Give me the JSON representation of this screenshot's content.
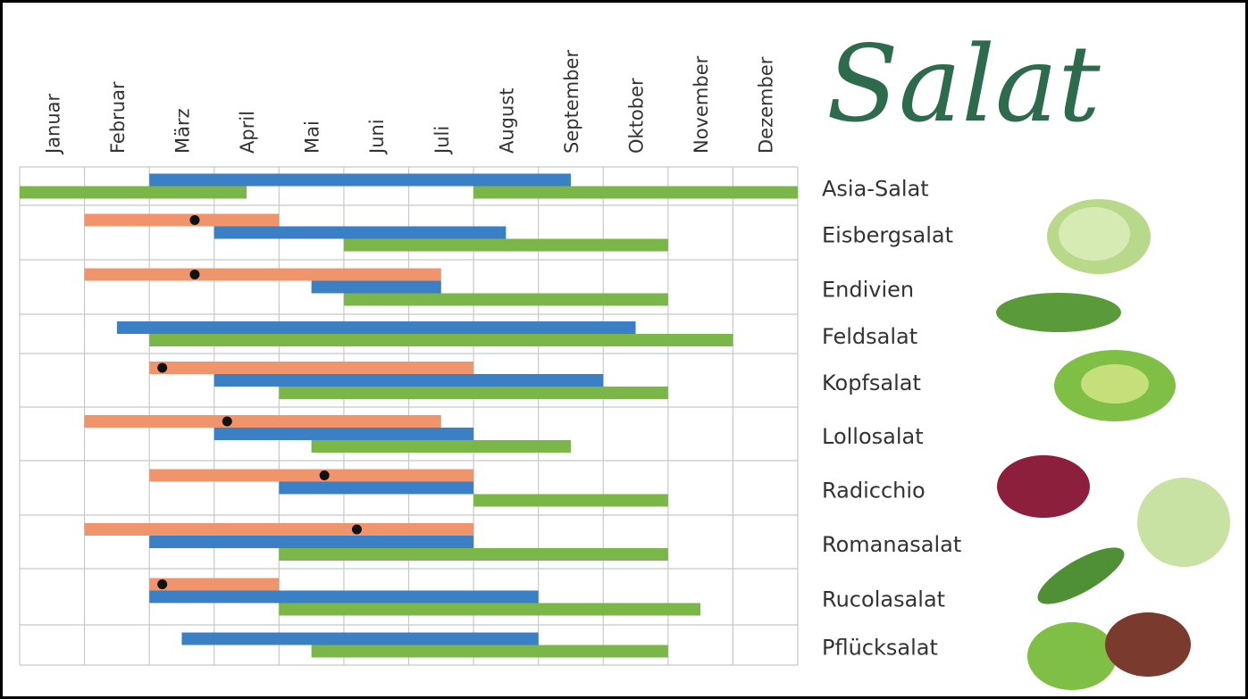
{
  "chart_data": {
    "type": "gantt",
    "title": "Salat",
    "categories": [
      "Januar",
      "Februar",
      "März",
      "April",
      "Mai",
      "Juni",
      "Juli",
      "August",
      "September",
      "Oktober",
      "November",
      "Dezember"
    ],
    "xlim": [
      0,
      12
    ],
    "xticks": [
      0,
      1,
      2,
      3,
      4,
      5,
      6,
      7,
      8,
      9,
      10,
      11,
      12
    ],
    "grid": true,
    "dot_color": "#111111",
    "rows": [
      {
        "label": "Asia-Salat",
        "bars": [
          {
            "color": "#3b7fc4",
            "start": 2,
            "end": 8.5
          },
          {
            "color": "#7ab648",
            "start": 0,
            "end": 3.5
          },
          {
            "color": "#7ab648",
            "start": 7,
            "end": 12
          }
        ]
      },
      {
        "label": "Eisbergsalat",
        "dot": 2.7,
        "bars": [
          {
            "color": "#f0956b",
            "start": 1,
            "end": 4
          },
          {
            "color": "#3b7fc4",
            "start": 3,
            "end": 7.5
          },
          {
            "color": "#7ab648",
            "start": 5,
            "end": 10
          }
        ]
      },
      {
        "label": "Endivien",
        "dot": 2.7,
        "bars": [
          {
            "color": "#f0956b",
            "start": 1,
            "end": 6.5
          },
          {
            "color": "#3b7fc4",
            "start": 4.5,
            "end": 6.5
          },
          {
            "color": "#7ab648",
            "start": 5,
            "end": 10
          }
        ]
      },
      {
        "label": "Feldsalat",
        "bars": [
          {
            "color": "#3b7fc4",
            "start": 1.5,
            "end": 9.5
          },
          {
            "color": "#7ab648",
            "start": 2,
            "end": 11
          }
        ]
      },
      {
        "label": "Kopfsalat",
        "dot": 2.2,
        "bars": [
          {
            "color": "#f0956b",
            "start": 2,
            "end": 7
          },
          {
            "color": "#3b7fc4",
            "start": 3,
            "end": 9
          },
          {
            "color": "#7ab648",
            "start": 4,
            "end": 10
          }
        ]
      },
      {
        "label": "Lollosalat",
        "dot": 3.2,
        "bars": [
          {
            "color": "#f0956b",
            "start": 1,
            "end": 6.5
          },
          {
            "color": "#3b7fc4",
            "start": 3,
            "end": 7
          },
          {
            "color": "#7ab648",
            "start": 4.5,
            "end": 8.5
          }
        ]
      },
      {
        "label": "Radicchio",
        "dot": 4.7,
        "bars": [
          {
            "color": "#f0956b",
            "start": 2,
            "end": 7
          },
          {
            "color": "#3b7fc4",
            "start": 4,
            "end": 7
          },
          {
            "color": "#7ab648",
            "start": 7,
            "end": 10
          }
        ]
      },
      {
        "label": "Romanasalat",
        "dot": 5.2,
        "bars": [
          {
            "color": "#f0956b",
            "start": 1,
            "end": 7
          },
          {
            "color": "#3b7fc4",
            "start": 2,
            "end": 7
          },
          {
            "color": "#7ab648",
            "start": 4,
            "end": 10
          }
        ]
      },
      {
        "label": "Rucolasalat",
        "dot": 2.2,
        "bars": [
          {
            "color": "#f0956b",
            "start": 2,
            "end": 4
          },
          {
            "color": "#3b7fc4",
            "start": 2,
            "end": 8
          },
          {
            "color": "#7ab648",
            "start": 4,
            "end": 10.5
          }
        ]
      },
      {
        "label": "Pflücksalat",
        "bars": [
          {
            "color": "#3b7fc4",
            "start": 2.5,
            "end": 8
          },
          {
            "color": "#7ab648",
            "start": 4.5,
            "end": 10
          }
        ]
      }
    ]
  }
}
